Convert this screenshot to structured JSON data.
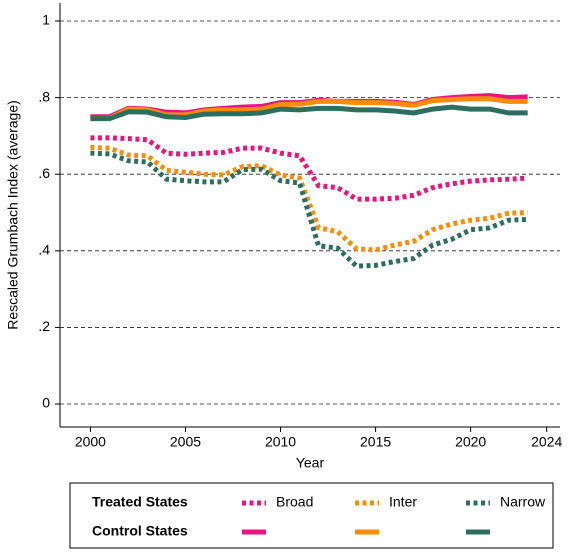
{
  "chart_data": {
    "type": "line",
    "y_label": "Rescaled Grumbach Index (average)",
    "x_label": "Year",
    "x": [
      2000,
      2001,
      2002,
      2003,
      2004,
      2005,
      2006,
      2007,
      2008,
      2009,
      2010,
      2011,
      2012,
      2013,
      2014,
      2015,
      2016,
      2017,
      2018,
      2019,
      2020,
      2021,
      2022,
      2023
    ],
    "series": [
      {
        "name": "Broad",
        "color": "#e8157f",
        "style": "dotted",
        "values": [
          0.695,
          0.695,
          0.693,
          0.69,
          0.655,
          0.652,
          0.655,
          0.657,
          0.668,
          0.668,
          0.655,
          0.648,
          0.57,
          0.565,
          0.535,
          0.535,
          0.537,
          0.545,
          0.565,
          0.575,
          0.582,
          0.585,
          0.587,
          0.59
        ]
      },
      {
        "name": "Inter",
        "color": "#f98c0b",
        "style": "dotted",
        "values": [
          0.67,
          0.668,
          0.65,
          0.648,
          0.61,
          0.605,
          0.6,
          0.598,
          0.62,
          0.622,
          0.598,
          0.59,
          0.46,
          0.45,
          0.405,
          0.402,
          0.415,
          0.425,
          0.455,
          0.47,
          0.48,
          0.485,
          0.498,
          0.5
        ]
      },
      {
        "name": "Narrow",
        "color": "#2e6e5e",
        "style": "dotted",
        "values": [
          0.655,
          0.653,
          0.635,
          0.632,
          0.587,
          0.583,
          0.58,
          0.58,
          0.612,
          0.613,
          0.583,
          0.577,
          0.413,
          0.407,
          0.36,
          0.362,
          0.372,
          0.38,
          0.415,
          0.43,
          0.455,
          0.46,
          0.48,
          0.482
        ]
      },
      {
        "color": "#e8157f",
        "style": "solid",
        "values": [
          0.75,
          0.75,
          0.772,
          0.77,
          0.762,
          0.76,
          0.768,
          0.772,
          0.775,
          0.777,
          0.787,
          0.787,
          0.793,
          0.79,
          0.79,
          0.79,
          0.788,
          0.782,
          0.795,
          0.8,
          0.803,
          0.805,
          0.8,
          0.802
        ]
      },
      {
        "color": "#f98c0b",
        "style": "solid",
        "values": [
          0.745,
          0.746,
          0.77,
          0.768,
          0.755,
          0.755,
          0.765,
          0.768,
          0.768,
          0.77,
          0.782,
          0.783,
          0.79,
          0.79,
          0.787,
          0.787,
          0.785,
          0.78,
          0.792,
          0.795,
          0.797,
          0.797,
          0.79,
          0.79
        ]
      },
      {
        "color": "#2e6e5e",
        "style": "solid",
        "values": [
          0.745,
          0.745,
          0.763,
          0.762,
          0.75,
          0.748,
          0.757,
          0.758,
          0.758,
          0.76,
          0.77,
          0.768,
          0.772,
          0.772,
          0.768,
          0.768,
          0.765,
          0.76,
          0.77,
          0.775,
          0.77,
          0.77,
          0.76,
          0.76
        ]
      }
    ],
    "legend": {
      "rows": [
        "Treated States",
        "Control States"
      ]
    },
    "xlim": [
      1998.4,
      2024.7
    ],
    "xticks": [
      2000,
      2005,
      2010,
      2015,
      2020,
      2024
    ],
    "ylim": [
      -0.06,
      1.047
    ],
    "yticks": [
      0,
      {
        "value": 0.2,
        "label": ".2"
      },
      {
        "value": 0.4,
        "label": ".4"
      },
      {
        "value": 0.6,
        "label": ".6"
      },
      {
        "value": 0.8,
        "label": ".8"
      },
      1
    ],
    "grid": true
  }
}
